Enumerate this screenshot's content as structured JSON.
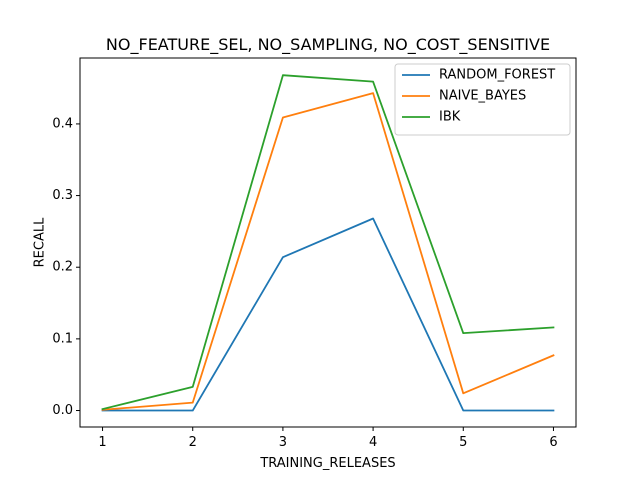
{
  "chart_data": {
    "type": "line",
    "title": "NO_FEATURE_SEL, NO_SAMPLING, NO_COST_SENSITIVE",
    "xlabel": "TRAINING_RELEASES",
    "ylabel": "RECALL",
    "x": [
      1,
      2,
      3,
      4,
      5,
      6
    ],
    "xticks": [
      "1",
      "2",
      "3",
      "4",
      "5",
      "6"
    ],
    "yticks": [
      "0.0",
      "0.1",
      "0.2",
      "0.3",
      "0.4"
    ],
    "xlim": [
      0.75,
      6.25
    ],
    "ylim": [
      -0.023,
      0.492
    ],
    "grid": false,
    "legend_position": "top-right",
    "series": [
      {
        "name": "RANDOM_FOREST",
        "color": "#1f77b4",
        "values": [
          0.0,
          0.0,
          0.214,
          0.268,
          0.0,
          0.0
        ]
      },
      {
        "name": "NAIVE_BAYES",
        "color": "#ff7f0e",
        "values": [
          0.001,
          0.011,
          0.409,
          0.443,
          0.024,
          0.077
        ]
      },
      {
        "name": "IBK",
        "color": "#2ca02c",
        "values": [
          0.002,
          0.033,
          0.468,
          0.459,
          0.108,
          0.116
        ]
      }
    ]
  }
}
